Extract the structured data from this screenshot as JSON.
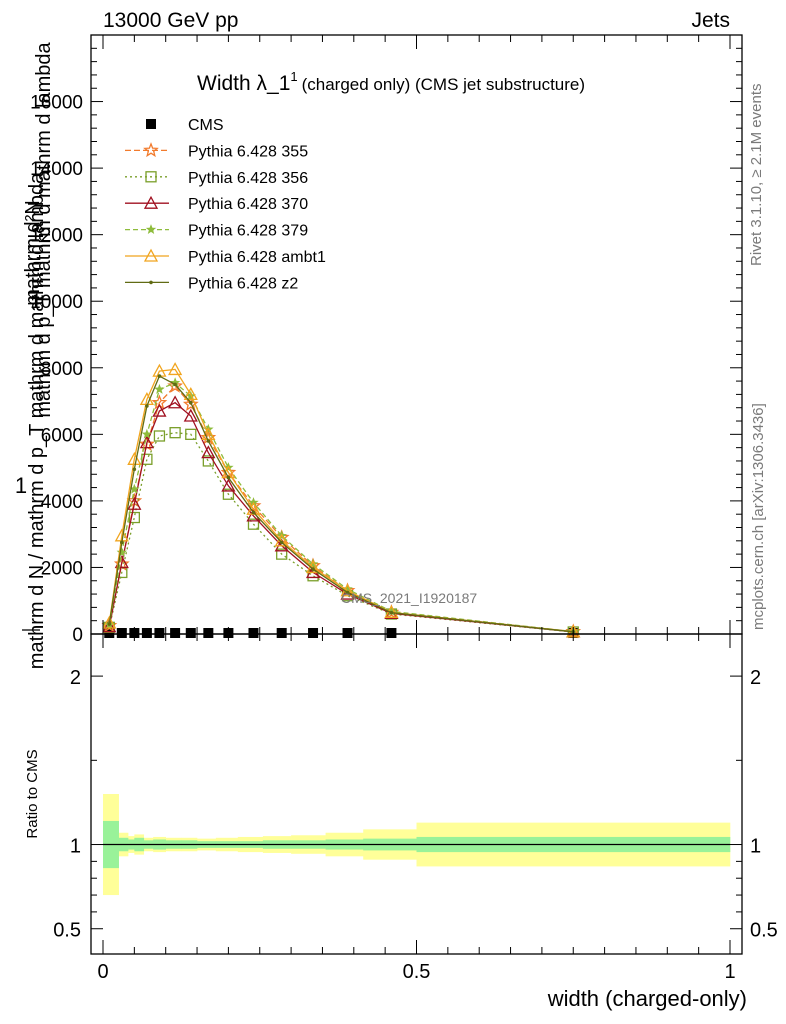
{
  "header": {
    "left": "13000 GeV pp",
    "right": "Jets"
  },
  "side_text": {
    "top": "Rivet 3.1.10, ≥ 2.1M events",
    "bottom": "mcplots.cern.ch [arXiv:1306.3436]"
  },
  "watermark": "CMS_2021_I1920187",
  "chart_data": {
    "type": "line",
    "title": "Width λ_1¹",
    "title_main": "Width λ_1",
    "title_sup": "1",
    "subtitle": "(charged only) (CMS jet substructure)",
    "xlabel": "width (charged-only)",
    "xlim": [
      -0.02,
      1.0
    ],
    "xticks": [
      "0",
      "0.5",
      "1"
    ],
    "main": {
      "ylabel_top": "mathrm d²N",
      "ylabel_top2": "mathrm d p_T mathrm d mathrm d lambda",
      "ylabel_one": "1",
      "ylabel_bottom": "mathrm d N / mathrm d p_T mathrm d mathrm d lambda",
      "ylim": [
        0,
        18000
      ],
      "yticks": [
        "0",
        "2000",
        "4000",
        "6000",
        "8000",
        "10000",
        "12000",
        "14000",
        "16000"
      ],
      "x": [
        0.01,
        0.03,
        0.05,
        0.07,
        0.09,
        0.115,
        0.14,
        0.168,
        0.2,
        0.24,
        0.285,
        0.335,
        0.39,
        0.46,
        0.75
      ],
      "series": [
        {
          "name": "CMS",
          "color": "#000000",
          "marker": "square-filled",
          "dash": "none",
          "values": [
            0,
            0,
            0,
            0,
            0,
            0,
            0,
            0,
            0,
            0,
            0,
            0,
            0,
            0,
            0
          ]
        },
        {
          "name": "Pythia 6.428 355",
          "color": "#f27b2d",
          "marker": "star-open",
          "dash": "6,3",
          "values": [
            250,
            2100,
            4000,
            5700,
            6950,
            7450,
            6900,
            5900,
            4850,
            3850,
            2900,
            2050,
            1300,
            650,
            70
          ]
        },
        {
          "name": "Pythia 6.428 356",
          "color": "#7a9f2a",
          "marker": "square-open",
          "dash": "2,3",
          "values": [
            200,
            1850,
            3500,
            5250,
            5950,
            6050,
            6000,
            5200,
            4200,
            3300,
            2400,
            1750,
            1150,
            600,
            60
          ]
        },
        {
          "name": "Pythia 6.428 370",
          "color": "#a01020",
          "marker": "triangle-open",
          "dash": "none",
          "values": [
            220,
            2150,
            3900,
            5750,
            6700,
            6950,
            6550,
            5450,
            4450,
            3550,
            2650,
            1850,
            1200,
            620,
            65
          ]
        },
        {
          "name": "Pythia 6.428 379",
          "color": "#8ebc3c",
          "marker": "star-filled",
          "dash": "5,3",
          "values": [
            280,
            2450,
            4350,
            6000,
            7350,
            7550,
            7150,
            6150,
            5000,
            3950,
            2950,
            2100,
            1350,
            680,
            72
          ]
        },
        {
          "name": "Pythia 6.428 ambt1",
          "color": "#f1a51f",
          "marker": "triangle-open",
          "dash": "none",
          "values": [
            330,
            2950,
            5250,
            7050,
            7900,
            7950,
            7200,
            6000,
            4850,
            3750,
            2800,
            2000,
            1300,
            650,
            68
          ]
        },
        {
          "name": "Pythia 6.428 z2",
          "color": "#616b14",
          "marker": "dot",
          "dash": "none",
          "values": [
            300,
            2750,
            4950,
            6850,
            7750,
            7500,
            6950,
            5800,
            4700,
            3650,
            2750,
            1950,
            1250,
            640,
            66
          ]
        }
      ]
    },
    "ratio": {
      "ylabel": "Ratio to CMS",
      "ylim": [
        0.35,
        2.25
      ],
      "yticks": [
        "0.5",
        "1",
        "2"
      ],
      "reference": 1.0,
      "bin_edges": [
        0.0,
        0.025,
        0.04,
        0.05,
        0.065,
        0.08,
        0.1,
        0.125,
        0.15,
        0.18,
        0.215,
        0.255,
        0.3,
        0.355,
        0.415,
        0.5,
        1.0
      ],
      "band_inner": {
        "color": "#99f299",
        "lo": [
          0.86,
          0.96,
          0.97,
          0.96,
          0.975,
          0.97,
          0.975,
          0.975,
          0.98,
          0.98,
          0.98,
          0.975,
          0.975,
          0.97,
          0.965,
          0.955
        ],
        "hi": [
          1.14,
          1.04,
          1.03,
          1.04,
          1.025,
          1.03,
          1.025,
          1.025,
          1.02,
          1.02,
          1.02,
          1.025,
          1.025,
          1.03,
          1.035,
          1.045
        ]
      },
      "band_outer": {
        "color": "#ffff99",
        "lo": [
          0.7,
          0.93,
          0.95,
          0.94,
          0.96,
          0.955,
          0.96,
          0.96,
          0.965,
          0.96,
          0.955,
          0.95,
          0.945,
          0.93,
          0.91,
          0.87
        ],
        "hi": [
          1.3,
          1.07,
          1.05,
          1.06,
          1.04,
          1.045,
          1.04,
          1.04,
          1.035,
          1.04,
          1.045,
          1.05,
          1.055,
          1.07,
          1.09,
          1.13
        ]
      }
    }
  }
}
